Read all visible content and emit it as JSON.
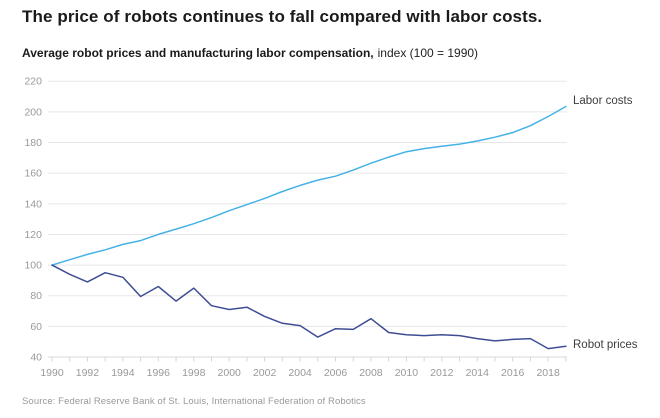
{
  "header": {
    "title": "The price of robots continues to fall compared with labor costs.",
    "subtitle_bold": "Average robot prices and manufacturing labor compensation,",
    "subtitle_rest": "index (100 = 1990)"
  },
  "source": "Source: Federal Reserve Bank of St. Louis, International Federation of Robotics",
  "colors": {
    "labor_line": "#45b2e6",
    "robot_line": "#3f4e94",
    "gridline": "#e7e7e7",
    "axis_line": "#d9d9d9",
    "tick_mark": "#d5d5d5",
    "tick_label": "#999999",
    "title_text": "#1a1a1a",
    "source_text": "#9a9a9a"
  },
  "chart_data": {
    "type": "line",
    "title": "The price of robots continues to fall compared with labor costs.",
    "subtitle": "Average robot prices and manufacturing labor compensation, index (100 = 1990)",
    "x": [
      1990,
      1991,
      1992,
      1993,
      1994,
      1995,
      1996,
      1997,
      1998,
      1999,
      2000,
      2001,
      2002,
      2003,
      2004,
      2005,
      2006,
      2007,
      2008,
      2009,
      2010,
      2011,
      2012,
      2013,
      2014,
      2015,
      2016,
      2017,
      2018,
      2019
    ],
    "series": [
      {
        "name": "Labor costs",
        "color": "#45b2e6",
        "values": [
          100,
          103.5,
          107,
          110,
          113.5,
          116,
          120,
          123.5,
          127,
          131,
          135.5,
          139.5,
          143.5,
          148,
          152,
          155.5,
          158,
          162,
          166.5,
          170.5,
          174,
          176,
          177.5,
          179,
          181,
          183.5,
          186.5,
          191,
          197,
          203.5
        ]
      },
      {
        "name": "Robot prices",
        "color": "#3f4e94",
        "values": [
          100,
          94,
          89,
          95,
          92,
          79.5,
          86,
          76.5,
          85,
          73.5,
          71,
          72.5,
          66.5,
          62,
          60.5,
          53,
          58.5,
          58,
          65,
          56,
          54.5,
          54,
          54.5,
          54,
          52,
          50.5,
          51.5,
          52,
          45.5,
          47
        ]
      }
    ],
    "x_ticks": [
      1990,
      1992,
      1994,
      1996,
      1998,
      2000,
      2002,
      2004,
      2006,
      2008,
      2010,
      2012,
      2014,
      2016,
      2018
    ],
    "y_ticks": [
      40,
      60,
      80,
      100,
      120,
      140,
      160,
      180,
      200,
      220
    ],
    "ylim": [
      40,
      220
    ],
    "xlim": [
      1990,
      2019
    ],
    "xlabel": "",
    "ylabel": "",
    "grid": true,
    "legend_position": "end-of-line labels right of chart"
  }
}
